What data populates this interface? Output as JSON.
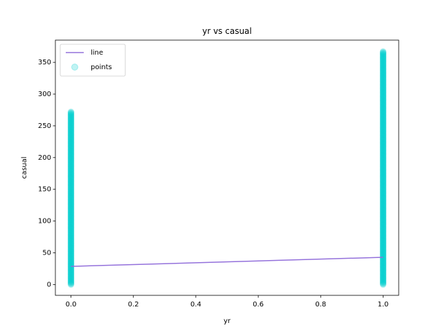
{
  "chart_data": {
    "type": "scatter",
    "title": "yr vs casual",
    "xlabel": "yr",
    "ylabel": "casual",
    "xlim": [
      -0.05,
      1.05
    ],
    "ylim": [
      -17,
      385
    ],
    "x_ticks": [
      0.0,
      0.2,
      0.4,
      0.6,
      0.8,
      1.0
    ],
    "x_tick_labels": [
      "0.0",
      "0.2",
      "0.4",
      "0.6",
      "0.8",
      "1.0"
    ],
    "y_ticks": [
      0,
      50,
      100,
      150,
      200,
      250,
      300,
      350
    ],
    "y_tick_labels": [
      "0",
      "50",
      "100",
      "150",
      "200",
      "250",
      "300",
      "350"
    ],
    "legend_position": "top-left",
    "series": [
      {
        "name": "line",
        "kind": "line",
        "color": "#9370db",
        "x": [
          0,
          1
        ],
        "y": [
          28.6,
          42.9
        ]
      },
      {
        "name": "points",
        "kind": "scatter",
        "color": "#00ced1",
        "opacity": 0.25,
        "groups": [
          {
            "x": 0,
            "y_min": 0,
            "y_max": 272
          },
          {
            "x": 1,
            "y_min": 0,
            "y_max": 367
          }
        ]
      }
    ]
  }
}
